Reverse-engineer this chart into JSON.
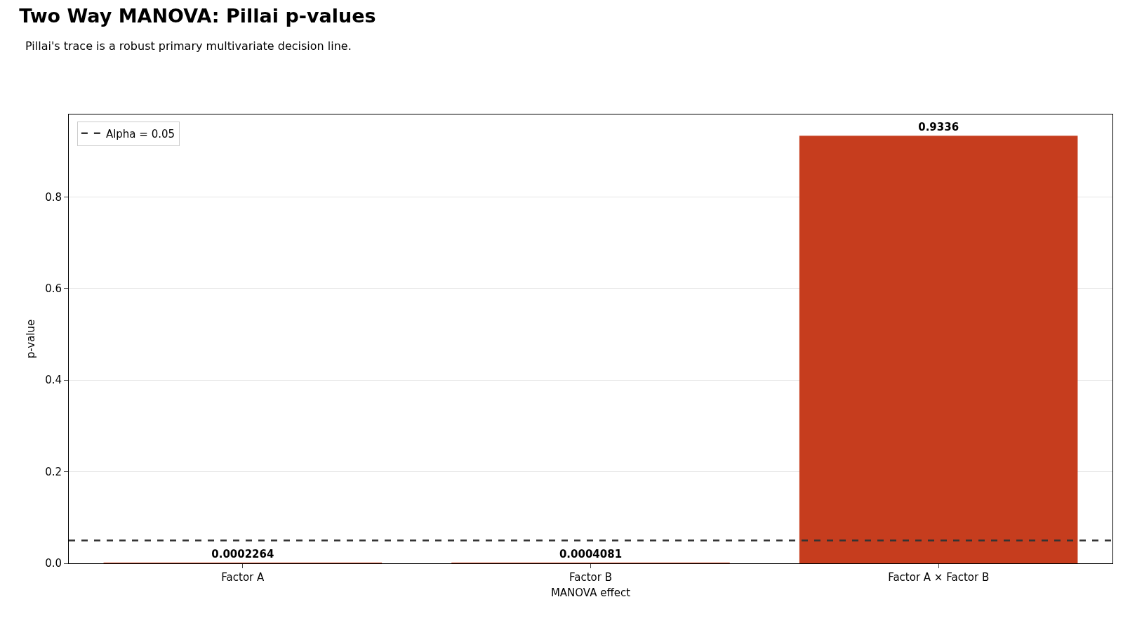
{
  "chart_data": {
    "type": "bar",
    "title": "Two Way MANOVA: Pillai p-values",
    "subtitle": "Pillai's trace is a robust primary multivariate decision line.",
    "xlabel": "MANOVA effect",
    "ylabel": "p-value",
    "categories": [
      "Factor A",
      "Factor B",
      "Factor A × Factor B"
    ],
    "values": [
      0.0002264,
      0.0004081,
      0.9336
    ],
    "color": "#c63d1e",
    "data_labels": true,
    "ylim": [
      0,
      0.98
    ],
    "yticks": [
      {
        "value": 0,
        "label": "0.0"
      },
      0.2,
      0.4,
      0.6,
      0.8
    ],
    "grid": "y",
    "legend": "top left",
    "ref_lines": [
      {
        "axis": "y",
        "value": 0.05,
        "label": "Alpha = 0.05",
        "color": "#333333",
        "line_style": "dashed"
      }
    ]
  }
}
